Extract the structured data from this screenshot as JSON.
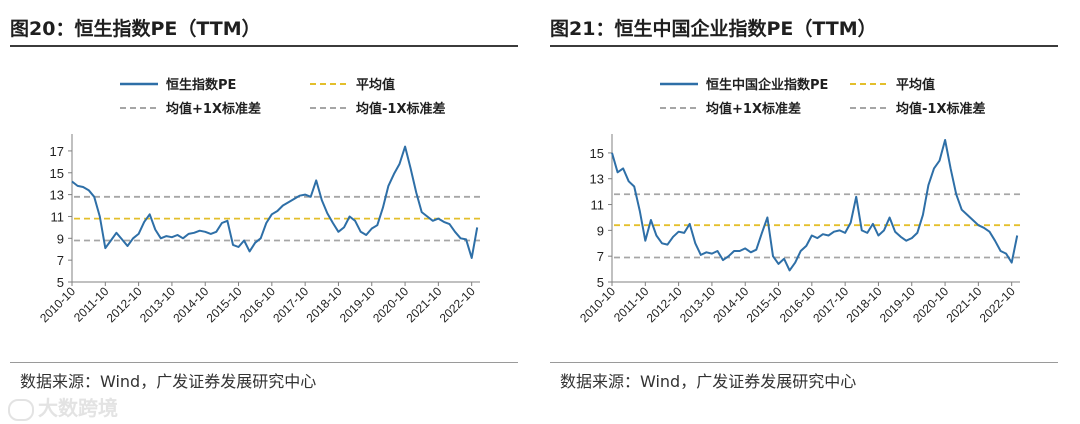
{
  "panels": [
    {
      "fig_title": "图20：恒生指数PE（TTM）",
      "source": "数据来源：Wind，广发证券发展研究中心",
      "chart_data": {
        "type": "line",
        "title": "",
        "ylim": [
          5,
          18
        ],
        "yticks": [
          5,
          7,
          9,
          11,
          13,
          15,
          17
        ],
        "xlim": [
          "2010-10",
          "2023-01"
        ],
        "xtick_labels": [
          "2010-10",
          "2011-10",
          "2012-10",
          "2013-10",
          "2014-10",
          "2015-10",
          "2016-10",
          "2017-10",
          "2018-10",
          "2019-10",
          "2020-10",
          "2021-10",
          "2022-10"
        ],
        "legend_placement": "top",
        "series": [
          {
            "name": "恒生指数PE",
            "color": "#2e6fa7",
            "x": [
              "2010-10",
              "2010-12",
              "2011-02",
              "2011-04",
              "2011-06",
              "2011-08",
              "2011-10",
              "2011-12",
              "2012-02",
              "2012-04",
              "2012-06",
              "2012-08",
              "2012-10",
              "2012-12",
              "2013-02",
              "2013-04",
              "2013-06",
              "2013-08",
              "2013-10",
              "2013-12",
              "2014-02",
              "2014-04",
              "2014-06",
              "2014-08",
              "2014-10",
              "2014-12",
              "2015-02",
              "2015-04",
              "2015-06",
              "2015-08",
              "2015-10",
              "2015-12",
              "2016-02",
              "2016-04",
              "2016-06",
              "2016-08",
              "2016-10",
              "2016-12",
              "2017-02",
              "2017-04",
              "2017-06",
              "2017-08",
              "2017-10",
              "2017-12",
              "2018-02",
              "2018-04",
              "2018-06",
              "2018-08",
              "2018-10",
              "2018-12",
              "2019-02",
              "2019-04",
              "2019-06",
              "2019-08",
              "2019-10",
              "2019-12",
              "2020-02",
              "2020-04",
              "2020-06",
              "2020-08",
              "2020-10",
              "2020-12",
              "2021-02",
              "2021-04",
              "2021-06",
              "2021-08",
              "2021-10",
              "2021-12",
              "2022-02",
              "2022-04",
              "2022-06",
              "2022-08",
              "2022-10",
              "2022-12"
            ],
            "values": [
              14.2,
              13.8,
              13.7,
              13.4,
              12.8,
              11.0,
              8.1,
              8.8,
              9.5,
              8.9,
              8.3,
              9.0,
              9.4,
              10.5,
              11.2,
              9.8,
              9.0,
              9.2,
              9.1,
              9.3,
              9.0,
              9.4,
              9.5,
              9.7,
              9.6,
              9.4,
              9.6,
              10.4,
              10.6,
              8.4,
              8.2,
              8.8,
              7.8,
              8.6,
              9.0,
              10.4,
              11.2,
              11.5,
              12.0,
              12.3,
              12.6,
              12.9,
              13.0,
              12.8,
              14.3,
              12.5,
              11.3,
              10.4,
              9.6,
              10.0,
              11.0,
              10.6,
              9.6,
              9.3,
              9.9,
              10.2,
              11.8,
              13.8,
              14.9,
              15.8,
              17.4,
              15.4,
              13.2,
              11.4,
              11.0,
              10.6,
              10.8,
              10.5,
              10.3,
              9.6,
              9.0,
              8.9,
              7.2,
              10.0
            ]
          },
          {
            "name": "平均值",
            "color": "#e3bf2c",
            "value": 10.8
          },
          {
            "name": "均值+1X标准差",
            "color": "#a6a6a6",
            "value": 12.8
          },
          {
            "name": "均值-1X标准差",
            "color": "#a6a6a6",
            "value": 8.8
          }
        ]
      }
    },
    {
      "fig_title": "图21：恒生中国企业指数PE（TTM）",
      "source": "数据来源：Wind，广发证券发展研究中心",
      "chart_data": {
        "type": "line",
        "title": "",
        "ylim": [
          5,
          16
        ],
        "yticks": [
          5,
          7,
          9,
          11,
          13,
          15
        ],
        "xlim": [
          "2010-10",
          "2023-01"
        ],
        "xtick_labels": [
          "2010-10",
          "2011-10",
          "2012-10",
          "2013-10",
          "2014-10",
          "2015-10",
          "2016-10",
          "2017-10",
          "2018-10",
          "2019-10",
          "2020-10",
          "2021-10",
          "2022-10"
        ],
        "legend_placement": "top",
        "series": [
          {
            "name": "恒生中国企业指数PE",
            "color": "#2e6fa7",
            "x": [
              "2010-10",
              "2010-12",
              "2011-02",
              "2011-04",
              "2011-06",
              "2011-08",
              "2011-10",
              "2011-12",
              "2012-02",
              "2012-04",
              "2012-06",
              "2012-08",
              "2012-10",
              "2012-12",
              "2013-02",
              "2013-04",
              "2013-06",
              "2013-08",
              "2013-10",
              "2013-12",
              "2014-02",
              "2014-04",
              "2014-06",
              "2014-08",
              "2014-10",
              "2014-12",
              "2015-02",
              "2015-04",
              "2015-06",
              "2015-08",
              "2015-10",
              "2015-12",
              "2016-02",
              "2016-04",
              "2016-06",
              "2016-08",
              "2016-10",
              "2016-12",
              "2017-02",
              "2017-04",
              "2017-06",
              "2017-08",
              "2017-10",
              "2017-12",
              "2018-02",
              "2018-04",
              "2018-06",
              "2018-08",
              "2018-10",
              "2018-12",
              "2019-02",
              "2019-04",
              "2019-06",
              "2019-08",
              "2019-10",
              "2019-12",
              "2020-02",
              "2020-04",
              "2020-06",
              "2020-08",
              "2020-10",
              "2020-12",
              "2021-02",
              "2021-04",
              "2021-06",
              "2021-08",
              "2021-10",
              "2021-12",
              "2022-02",
              "2022-04",
              "2022-06",
              "2022-08",
              "2022-10",
              "2022-12"
            ],
            "values": [
              15.0,
              13.5,
              13.8,
              12.8,
              12.4,
              10.5,
              8.2,
              9.8,
              8.6,
              8.0,
              7.9,
              8.5,
              8.9,
              8.8,
              9.5,
              8.0,
              7.1,
              7.3,
              7.2,
              7.4,
              6.7,
              7.0,
              7.4,
              7.4,
              7.6,
              7.3,
              7.5,
              8.8,
              10.0,
              7.0,
              6.4,
              6.8,
              5.9,
              6.5,
              7.4,
              7.8,
              8.6,
              8.4,
              8.7,
              8.6,
              8.9,
              9.0,
              8.8,
              9.6,
              11.6,
              9.0,
              8.8,
              9.5,
              8.6,
              9.0,
              10.0,
              8.9,
              8.5,
              8.2,
              8.4,
              8.8,
              10.2,
              12.5,
              13.8,
              14.4,
              16.0,
              13.8,
              11.8,
              10.6,
              10.2,
              9.8,
              9.4,
              9.2,
              8.9,
              8.2,
              7.4,
              7.2,
              6.5,
              8.6
            ]
          },
          {
            "name": "平均值",
            "color": "#e3bf2c",
            "value": 9.4
          },
          {
            "name": "均值+1X标准差",
            "color": "#a6a6a6",
            "value": 11.8
          },
          {
            "name": "均值-1X标准差",
            "color": "#a6a6a6",
            "value": 6.9
          }
        ]
      }
    }
  ],
  "watermark": "大数跨境"
}
